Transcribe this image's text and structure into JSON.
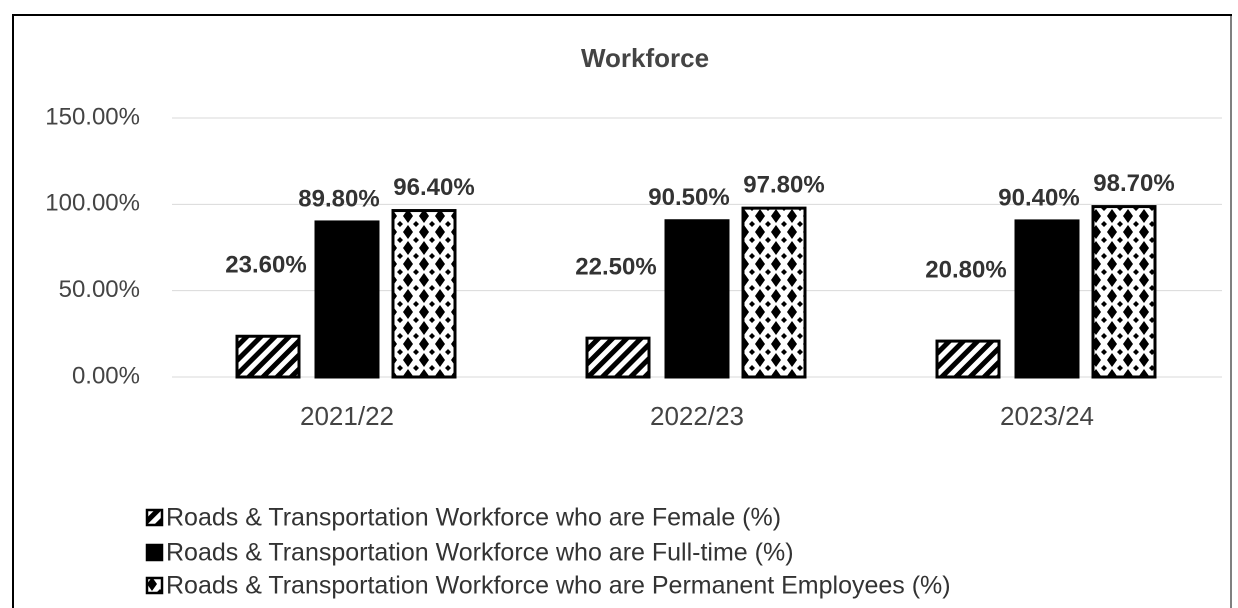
{
  "chart_data": {
    "type": "bar",
    "title": "Workforce",
    "categories": [
      "2021/22",
      "2022/23",
      "2023/24"
    ],
    "series": [
      {
        "name": "Roads & Transportation Workforce who are Female (%)",
        "color": "#000000",
        "pattern": "diagonal",
        "values": [
          23.6,
          22.5,
          20.8
        ],
        "value_labels": [
          "23.60%",
          "22.50%",
          "20.80%"
        ]
      },
      {
        "name": "Roads & Transportation Workforce who are Full-time (%)",
        "color": "#000000",
        "pattern": "solid",
        "values": [
          89.8,
          90.5,
          90.4
        ],
        "value_labels": [
          "89.80%",
          "90.50%",
          "90.40%"
        ]
      },
      {
        "name": "Roads & Transportation Workforce who are Permanent Employees (%)",
        "color": "#000000",
        "pattern": "diamond",
        "values": [
          96.4,
          97.8,
          98.7
        ],
        "value_labels": [
          "96.40%",
          "97.80%",
          "98.70%"
        ]
      }
    ],
    "ylim": [
      0,
      150
    ],
    "yticks": [
      {
        "value": 0,
        "label": "0.00%"
      },
      {
        "value": 50,
        "label": "50.00%"
      },
      {
        "value": 100,
        "label": "100.00%"
      },
      {
        "value": 150,
        "label": "150.00%"
      }
    ],
    "grid": true,
    "legend": "bottom"
  }
}
